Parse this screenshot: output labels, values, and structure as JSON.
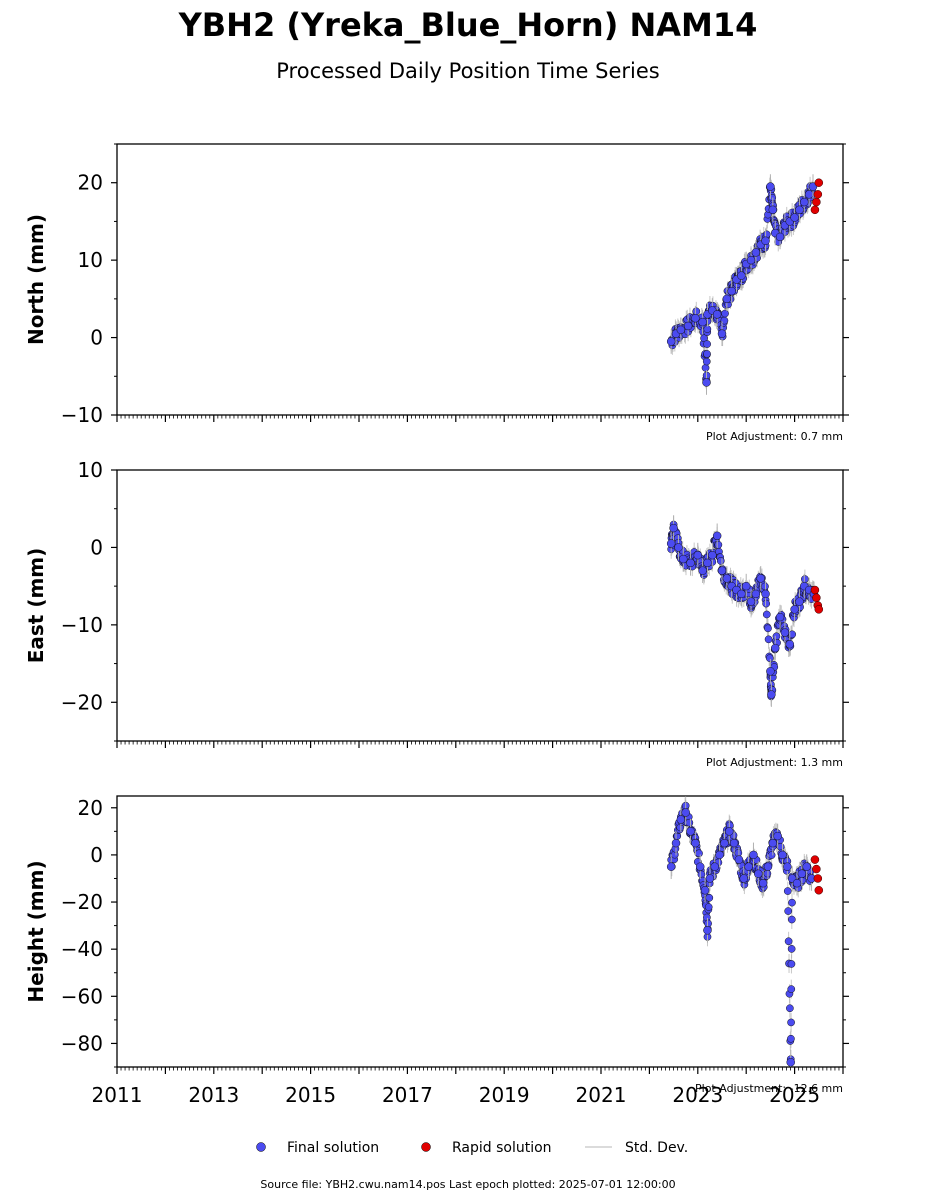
{
  "title": "YBH2 (Yreka_Blue_Horn) NAM14",
  "subtitle": "Processed Daily Position Time Series",
  "x_tick_labels": [
    "2011",
    "2013",
    "2015",
    "2017",
    "2019",
    "2021",
    "2023",
    "2025"
  ],
  "legend": {
    "final": "Final solution",
    "rapid": "Rapid solution",
    "std": "Std. Dev."
  },
  "footer": "Source file: YBH2.cwu.nam14.pos  Last epoch plotted: 2025-07-01 12:00:00",
  "colors": {
    "final": "#4b4bf0",
    "rapid": "#e00000",
    "std": "#b0b0b0"
  },
  "chart_data": [
    {
      "type": "scatter",
      "ylabel": "North (mm)",
      "ylim": [
        -10,
        25
      ],
      "xlim": [
        2011,
        2026
      ],
      "y_ticks": [
        -10,
        0,
        10,
        20
      ],
      "y_tick_labels": [
        "−10",
        "0",
        "10",
        "20"
      ],
      "adjustment": "Plot Adjustment: 0.7 mm",
      "series": [
        {
          "name": "Final solution",
          "x": [
            2022.45,
            2022.55,
            2022.65,
            2022.8,
            2022.95,
            2023.1,
            2023.2,
            2023.3,
            2023.4,
            2023.5,
            2023.6,
            2023.7,
            2023.8,
            2023.9,
            2024.0,
            2024.1,
            2024.2,
            2024.3,
            2024.4,
            2024.5,
            2024.55,
            2024.6,
            2024.7,
            2024.8,
            2024.9,
            2025.0,
            2025.1,
            2025.2,
            2025.3,
            2025.38,
            2023.18
          ],
          "y": [
            -0.5,
            0.5,
            1.0,
            1.5,
            2.5,
            2.0,
            3.0,
            3.5,
            3.0,
            0.5,
            5.0,
            6.0,
            7.5,
            8.0,
            9.5,
            10.0,
            11.0,
            12.0,
            12.5,
            19.5,
            16.5,
            13.5,
            13.0,
            14.5,
            15.0,
            15.5,
            16.5,
            17.5,
            18.5,
            19.5,
            -5.8
          ]
        },
        {
          "name": "Rapid solution",
          "x": [
            2025.42,
            2025.45,
            2025.48,
            2025.5
          ],
          "y": [
            16.5,
            17.5,
            18.5,
            20.0
          ]
        }
      ]
    },
    {
      "type": "scatter",
      "ylabel": "East (mm)",
      "ylim": [
        -25,
        10
      ],
      "xlim": [
        2011,
        2026
      ],
      "y_ticks": [
        -20,
        -10,
        0,
        10
      ],
      "y_tick_labels": [
        "−20",
        "−10",
        "0",
        "10"
      ],
      "adjustment": "Plot Adjustment: 1.3 mm",
      "series": [
        {
          "name": "Final solution",
          "x": [
            2022.45,
            2022.5,
            2022.6,
            2022.7,
            2022.85,
            2023.0,
            2023.1,
            2023.2,
            2023.3,
            2023.4,
            2023.5,
            2023.6,
            2023.7,
            2023.8,
            2023.9,
            2024.0,
            2024.1,
            2024.2,
            2024.3,
            2024.4,
            2024.5,
            2024.52,
            2024.6,
            2024.7,
            2024.8,
            2024.9,
            2025.0,
            2025.1,
            2025.2,
            2025.3,
            2025.4
          ],
          "y": [
            0.5,
            2.5,
            0.0,
            -1.5,
            -2.0,
            -1.0,
            -3.0,
            -2.0,
            -1.0,
            1.5,
            -3.0,
            -4.0,
            -5.0,
            -5.5,
            -6.0,
            -5.0,
            -7.0,
            -6.0,
            -4.0,
            -6.0,
            -16.0,
            -19.0,
            -13.0,
            -9.0,
            -11.0,
            -12.5,
            -8.0,
            -7.0,
            -5.0,
            -5.5,
            -6.0
          ]
        },
        {
          "name": "Rapid solution",
          "x": [
            2025.42,
            2025.45,
            2025.48,
            2025.5
          ],
          "y": [
            -5.5,
            -6.5,
            -7.5,
            -8.0
          ]
        }
      ]
    },
    {
      "type": "scatter",
      "ylabel": "Height (mm)",
      "ylim": [
        -90,
        25
      ],
      "xlim": [
        2011,
        2026
      ],
      "y_ticks": [
        -80,
        -60,
        -40,
        -20,
        0,
        20
      ],
      "y_tick_labels": [
        "−80",
        "−60",
        "−40",
        "−20",
        "0",
        "20"
      ],
      "adjustment": "Plot Adjustment: -12.6 mm",
      "series": [
        {
          "name": "Final solution",
          "x": [
            2022.45,
            2022.55,
            2022.65,
            2022.75,
            2022.85,
            2022.95,
            2023.05,
            2023.15,
            2023.25,
            2023.35,
            2023.45,
            2023.55,
            2023.65,
            2023.75,
            2023.85,
            2023.95,
            2024.05,
            2024.15,
            2024.25,
            2024.35,
            2024.45,
            2024.55,
            2024.65,
            2024.75,
            2024.85,
            2024.95,
            2025.05,
            2025.15,
            2025.25,
            2025.35,
            2023.2,
            2024.92
          ],
          "y": [
            -5,
            5,
            15,
            18,
            10,
            5,
            -5,
            -15,
            -10,
            -5,
            0,
            5,
            10,
            5,
            -2,
            -10,
            -5,
            0,
            -8,
            -12,
            -5,
            5,
            8,
            0,
            -5,
            -10,
            -12,
            -8,
            -5,
            -10,
            -32,
            -88
          ]
        },
        {
          "name": "Rapid solution",
          "x": [
            2025.42,
            2025.45,
            2025.48,
            2025.5
          ],
          "y": [
            -2,
            -6,
            -10,
            -15
          ]
        }
      ]
    }
  ]
}
